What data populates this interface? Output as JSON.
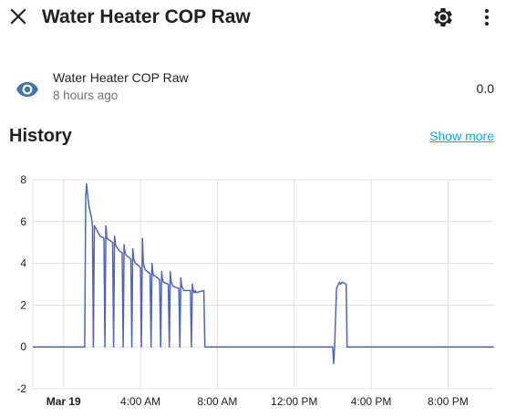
{
  "header": {
    "title": "Water Heater COP Raw",
    "close_icon": "close-icon",
    "settings_icon": "gear-icon",
    "menu_icon": "more-vertical-icon"
  },
  "entity": {
    "icon": "eye-icon",
    "name": "Water Heater COP Raw",
    "last_changed": "8 hours ago",
    "state": "0.0"
  },
  "history": {
    "title": "History",
    "show_more_label": "Show more"
  },
  "colors": {
    "line": "#4f63c4",
    "icon": "#44739e",
    "link": "#03a9f4"
  },
  "chart_data": {
    "type": "line",
    "ylim": [
      -2,
      8
    ],
    "y_ticks": [
      8,
      6,
      4,
      2,
      0,
      -2
    ],
    "x_ticks": [
      {
        "label": "Mar 19",
        "hour": 0,
        "bold": true
      },
      {
        "label": "4:00 AM",
        "hour": 4
      },
      {
        "label": "8:00 AM",
        "hour": 8
      },
      {
        "label": "12:00 PM",
        "hour": 12
      },
      {
        "label": "4:00 PM",
        "hour": 16
      },
      {
        "label": "8:00 PM",
        "hour": 20
      }
    ],
    "xlim_hours": [
      -1.6,
      22.4
    ],
    "grid": true,
    "series": [
      {
        "x_hours": [
          -1.6,
          1.1,
          1.15,
          1.2,
          1.27,
          1.35,
          1.45,
          1.5,
          1.55,
          1.6,
          1.9,
          2.1,
          2.15,
          2.2,
          2.25,
          2.4,
          2.55,
          2.6,
          2.65,
          2.7,
          2.75,
          2.9,
          3.05,
          3.1,
          3.15,
          3.2,
          3.25,
          3.5,
          3.55,
          3.6,
          3.65,
          3.7,
          3.75,
          4.0,
          4.05,
          4.1,
          4.15,
          4.2,
          4.25,
          4.5,
          4.55,
          4.6,
          4.65,
          4.7,
          4.75,
          4.9,
          5.0,
          5.05,
          5.1,
          5.15,
          5.2,
          5.45,
          5.5,
          5.55,
          5.6,
          5.65,
          5.7,
          6.0,
          6.05,
          6.1,
          6.15,
          6.2,
          6.25,
          6.6,
          6.65,
          6.7,
          6.75,
          6.8,
          6.85,
          6.9,
          7.3,
          7.35,
          7.4,
          14.0,
          14.05,
          14.1,
          14.2,
          14.3,
          14.35,
          14.4,
          14.5,
          14.7,
          14.75,
          14.8,
          22.4
        ],
        "y_values": [
          0.0,
          0.0,
          7.2,
          7.8,
          7.1,
          6.6,
          6.2,
          5.8,
          0.0,
          5.8,
          5.3,
          5.2,
          0.0,
          5.8,
          5.2,
          5.1,
          5.0,
          0.0,
          5.3,
          4.9,
          4.8,
          4.6,
          4.5,
          0.0,
          4.9,
          4.5,
          4.4,
          4.2,
          0.0,
          4.7,
          4.2,
          4.1,
          4.0,
          3.8,
          0.0,
          5.2,
          4.0,
          3.8,
          3.7,
          3.5,
          0.0,
          4.0,
          3.5,
          3.4,
          3.4,
          3.3,
          3.2,
          0.0,
          3.6,
          3.2,
          3.1,
          3.0,
          0.0,
          3.6,
          3.1,
          3.0,
          2.9,
          2.8,
          0.0,
          3.3,
          2.9,
          2.8,
          2.7,
          2.7,
          0.0,
          3.0,
          2.7,
          2.6,
          2.7,
          2.6,
          2.7,
          0.0,
          0.0,
          0.0,
          -0.8,
          0.0,
          2.8,
          3.0,
          3.1,
          3.0,
          3.1,
          3.0,
          0.0,
          0.0,
          0.0
        ]
      }
    ]
  }
}
